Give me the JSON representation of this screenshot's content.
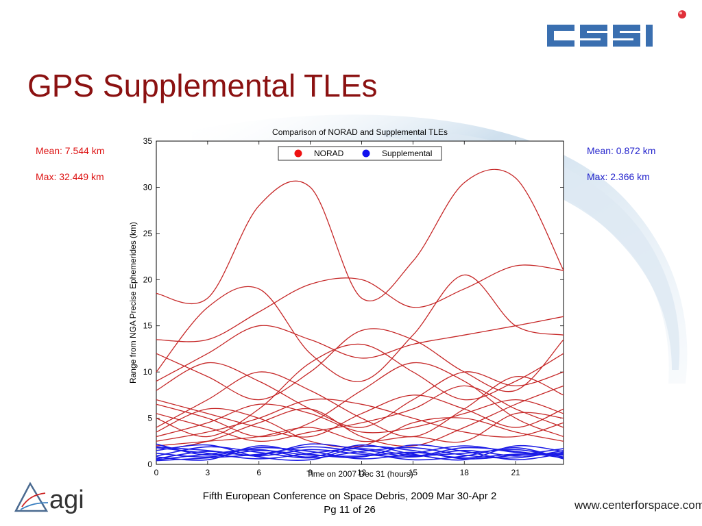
{
  "slide": {
    "title": "GPS Supplemental TLEs",
    "norad_stats": {
      "mean": "Mean: 7.544 km",
      "max": "Max: 32.449 km"
    },
    "supp_stats": {
      "mean": "Mean: 0.872 km",
      "max": "Max:   2.366 km"
    },
    "footer": {
      "conference": "Fifth European Conference on Space Debris, 2009 Mar 30-Apr 2",
      "page": "Pg 11 of 26"
    },
    "website": "www.centerforspace.com",
    "logos": {
      "top_right": "CSSI",
      "bottom_left": "agi"
    },
    "colors": {
      "title": "#8b1111",
      "norad": "#dd1111",
      "supplemental": "#1a1ae6",
      "norad_line": "#c62828",
      "supp_line": "#1a1ae6"
    }
  },
  "chart_data": {
    "type": "line",
    "title": "Comparison of NORAD and Supplemental TLEs",
    "xlabel": "Time on 2007 Dec 31 (hours)",
    "ylabel": "Range from NGA Precise Ephemerides (km)",
    "xlim": [
      0,
      23.8
    ],
    "ylim": [
      0,
      35
    ],
    "xticks": [
      0,
      3,
      6,
      9,
      12,
      15,
      18,
      21
    ],
    "yticks": [
      0,
      5,
      10,
      15,
      20,
      25,
      30,
      35
    ],
    "legend": {
      "position": "top-center",
      "entries": [
        "NORAD",
        "Supplemental"
      ]
    },
    "x": [
      0,
      3,
      6,
      9,
      12,
      15,
      18,
      21,
      23.8
    ],
    "series": [
      {
        "group": "NORAD",
        "values": [
          18.5,
          18.0,
          28.0,
          30.0,
          18.0,
          22.0,
          30.5,
          31.0,
          21.0
        ]
      },
      {
        "group": "NORAD",
        "values": [
          13.5,
          13.5,
          16.5,
          19.5,
          20.0,
          17.0,
          19.0,
          21.5,
          21.0
        ]
      },
      {
        "group": "NORAD",
        "values": [
          10.0,
          17.0,
          19.0,
          12.0,
          9.0,
          14.0,
          20.5,
          15.0,
          14.0
        ]
      },
      {
        "group": "NORAD",
        "values": [
          9.0,
          12.0,
          15.0,
          13.5,
          11.5,
          13.0,
          14.0,
          15.0,
          16.0
        ]
      },
      {
        "group": "NORAD",
        "values": [
          12.0,
          9.5,
          7.0,
          10.0,
          14.5,
          13.5,
          10.0,
          8.0,
          13.5
        ]
      },
      {
        "group": "NORAD",
        "values": [
          5.0,
          3.0,
          6.0,
          11.0,
          13.0,
          10.0,
          7.0,
          9.0,
          12.0
        ]
      },
      {
        "group": "NORAD",
        "values": [
          8.0,
          11.0,
          9.0,
          6.0,
          4.0,
          7.0,
          10.0,
          8.5,
          10.0
        ]
      },
      {
        "group": "NORAD",
        "values": [
          4.0,
          7.0,
          10.0,
          8.0,
          5.0,
          3.0,
          6.0,
          9.5,
          7.5
        ]
      },
      {
        "group": "NORAD",
        "values": [
          6.5,
          5.0,
          3.0,
          4.5,
          8.0,
          11.0,
          9.0,
          5.0,
          3.0
        ]
      },
      {
        "group": "NORAD",
        "values": [
          3.0,
          4.5,
          6.5,
          5.5,
          3.5,
          4.0,
          5.5,
          7.0,
          5.5
        ]
      },
      {
        "group": "NORAD",
        "values": [
          7.0,
          5.5,
          4.0,
          3.0,
          5.5,
          7.5,
          6.0,
          4.0,
          6.0
        ]
      },
      {
        "group": "NORAD",
        "values": [
          2.5,
          3.5,
          5.0,
          7.0,
          6.5,
          5.0,
          3.5,
          3.0,
          4.5
        ]
      },
      {
        "group": "NORAD",
        "values": [
          5.5,
          4.0,
          2.5,
          3.5,
          4.5,
          6.0,
          8.5,
          6.0,
          4.0
        ]
      },
      {
        "group": "NORAD",
        "values": [
          1.5,
          2.5,
          4.5,
          6.0,
          3.0,
          2.0,
          4.0,
          6.5,
          8.5
        ]
      },
      {
        "group": "NORAD",
        "values": [
          3.5,
          6.0,
          5.0,
          2.5,
          2.0,
          4.5,
          5.0,
          3.5,
          2.5
        ]
      },
      {
        "group": "NORAD",
        "values": [
          2.0,
          2.5,
          3.0,
          4.0,
          2.5,
          3.0,
          2.5,
          5.5,
          5.0
        ]
      },
      {
        "group": "Supplemental",
        "values": [
          1.2,
          0.8,
          1.5,
          1.0,
          0.9,
          1.3,
          0.7,
          1.1,
          1.0
        ]
      },
      {
        "group": "Supplemental",
        "values": [
          0.6,
          1.4,
          0.9,
          1.6,
          1.1,
          0.8,
          1.5,
          0.9,
          1.3
        ]
      },
      {
        "group": "Supplemental",
        "values": [
          1.8,
          1.2,
          0.6,
          1.2,
          1.7,
          1.0,
          1.2,
          1.6,
          0.8
        ]
      },
      {
        "group": "Supplemental",
        "values": [
          0.9,
          1.9,
          1.3,
          0.7,
          1.4,
          1.8,
          1.0,
          0.7,
          1.5
        ]
      },
      {
        "group": "Supplemental",
        "values": [
          2.2,
          1.0,
          1.8,
          1.4,
          0.6,
          1.2,
          2.0,
          1.3,
          1.1
        ]
      },
      {
        "group": "Supplemental",
        "values": [
          0.4,
          0.7,
          1.1,
          1.9,
          1.3,
          0.5,
          0.9,
          1.8,
          0.6
        ]
      },
      {
        "group": "Supplemental",
        "values": [
          1.5,
          2.1,
          0.8,
          0.5,
          1.9,
          1.5,
          0.6,
          1.0,
          1.7
        ]
      },
      {
        "group": "Supplemental",
        "values": [
          0.8,
          0.5,
          2.0,
          1.1,
          0.8,
          2.1,
          1.4,
          0.5,
          1.2
        ]
      },
      {
        "group": "Supplemental",
        "values": [
          1.9,
          1.5,
          1.0,
          2.2,
          1.6,
          0.9,
          1.8,
          1.4,
          0.7
        ]
      },
      {
        "group": "Supplemental",
        "values": [
          0.5,
          1.1,
          1.6,
          0.8,
          2.1,
          1.1,
          0.5,
          2.0,
          1.4
        ]
      }
    ]
  }
}
